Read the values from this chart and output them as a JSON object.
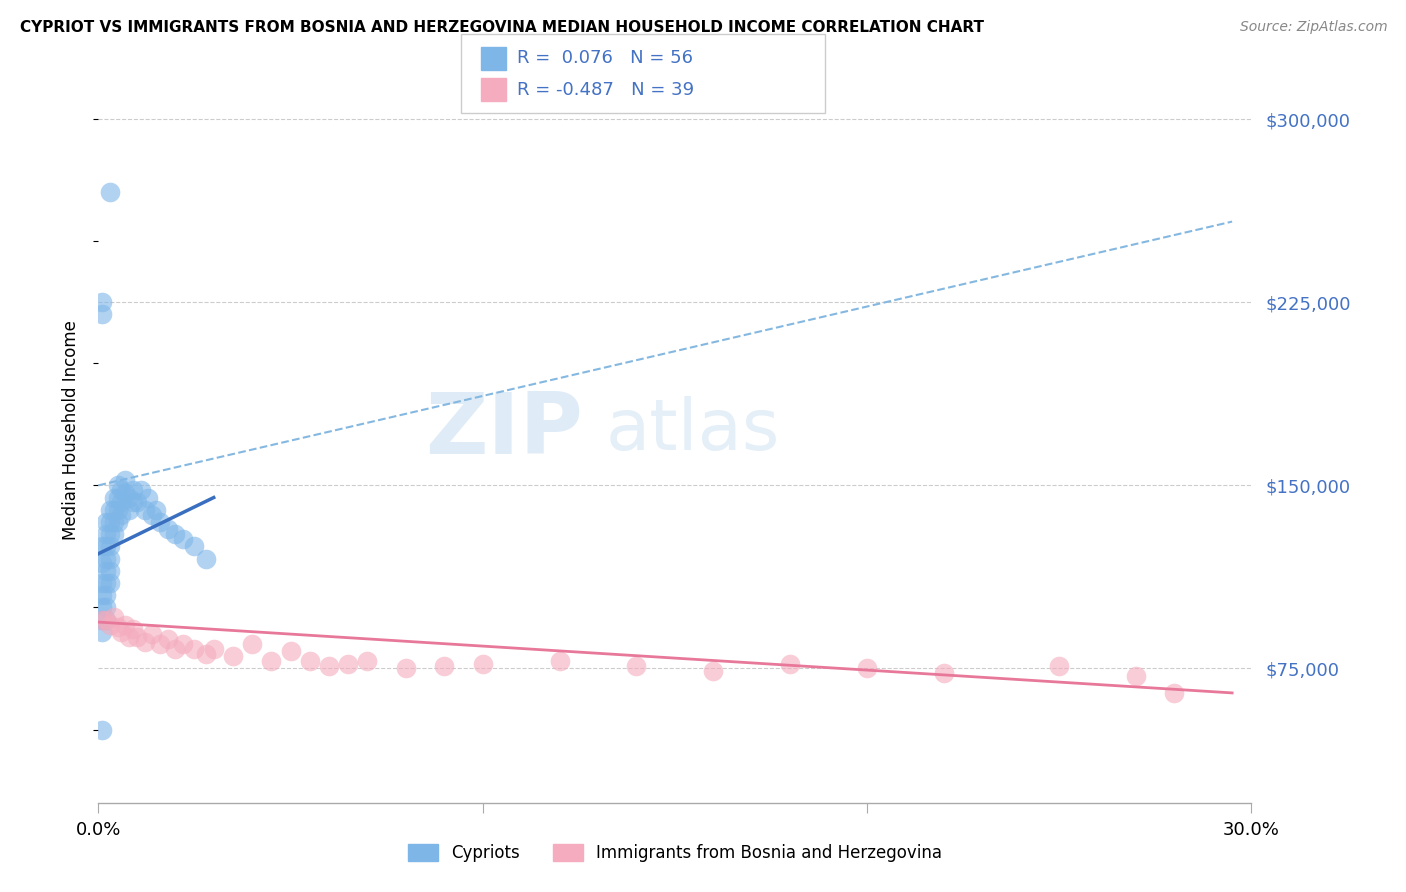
{
  "title": "CYPRIOT VS IMMIGRANTS FROM BOSNIA AND HERZEGOVINA MEDIAN HOUSEHOLD INCOME CORRELATION CHART",
  "source": "Source: ZipAtlas.com",
  "ylabel": "Median Household Income",
  "ytick_labels": [
    "$75,000",
    "$150,000",
    "$225,000",
    "$300,000"
  ],
  "ytick_values": [
    75000,
    150000,
    225000,
    300000
  ],
  "xmin": 0.0,
  "xmax": 0.3,
  "ymin": 20000,
  "ymax": 325000,
  "color_blue": "#7EB6E8",
  "color_blue_line": "#3A6FBF",
  "color_pink": "#F4ACBE",
  "color_pink_line": "#E8789A",
  "color_dashed": "#85B8E0",
  "color_text_blue": "#4472C4",
  "color_grid": "#cccccc",
  "watermark_zip": "ZIP",
  "watermark_atlas": "atlas",
  "legend_line1": "R =  0.076   N = 56",
  "legend_line2": "R = -0.487   N = 39",
  "cyp_x": [
    0.001,
    0.001,
    0.001,
    0.001,
    0.001,
    0.001,
    0.001,
    0.002,
    0.002,
    0.002,
    0.002,
    0.002,
    0.002,
    0.002,
    0.002,
    0.002,
    0.003,
    0.003,
    0.003,
    0.003,
    0.003,
    0.003,
    0.003,
    0.004,
    0.004,
    0.004,
    0.004,
    0.005,
    0.005,
    0.005,
    0.005,
    0.006,
    0.006,
    0.006,
    0.007,
    0.007,
    0.008,
    0.008,
    0.009,
    0.009,
    0.01,
    0.011,
    0.012,
    0.013,
    0.014,
    0.015,
    0.016,
    0.018,
    0.02,
    0.022,
    0.025,
    0.028,
    0.003,
    0.001,
    0.001,
    0.001
  ],
  "cyp_y": [
    125000,
    118000,
    110000,
    105000,
    100000,
    95000,
    90000,
    135000,
    130000,
    125000,
    120000,
    115000,
    110000,
    105000,
    100000,
    95000,
    140000,
    135000,
    130000,
    125000,
    120000,
    115000,
    110000,
    145000,
    140000,
    135000,
    130000,
    150000,
    145000,
    140000,
    135000,
    148000,
    143000,
    138000,
    152000,
    147000,
    145000,
    140000,
    148000,
    143000,
    143000,
    148000,
    140000,
    145000,
    138000,
    140000,
    135000,
    132000,
    130000,
    128000,
    125000,
    120000,
    270000,
    225000,
    220000,
    50000
  ],
  "bos_x": [
    0.001,
    0.002,
    0.003,
    0.004,
    0.005,
    0.006,
    0.007,
    0.008,
    0.009,
    0.01,
    0.012,
    0.014,
    0.016,
    0.018,
    0.02,
    0.022,
    0.025,
    0.028,
    0.03,
    0.035,
    0.04,
    0.045,
    0.05,
    0.055,
    0.06,
    0.065,
    0.07,
    0.08,
    0.09,
    0.1,
    0.12,
    0.14,
    0.16,
    0.18,
    0.2,
    0.22,
    0.25,
    0.27,
    0.28
  ],
  "bos_y": [
    95000,
    95000,
    93000,
    96000,
    92000,
    90000,
    93000,
    88000,
    91000,
    88000,
    86000,
    89000,
    85000,
    87000,
    83000,
    85000,
    83000,
    81000,
    83000,
    80000,
    85000,
    78000,
    82000,
    78000,
    76000,
    77000,
    78000,
    75000,
    76000,
    77000,
    78000,
    76000,
    74000,
    77000,
    75000,
    73000,
    76000,
    72000,
    65000
  ],
  "blue_line_x": [
    0.0,
    0.03
  ],
  "blue_line_y": [
    122000,
    145000
  ],
  "pink_line_x": [
    0.0,
    0.295
  ],
  "pink_line_y": [
    94000,
    65000
  ],
  "dashed_line_x": [
    0.0,
    0.295
  ],
  "dashed_line_y": [
    150000,
    258000
  ]
}
